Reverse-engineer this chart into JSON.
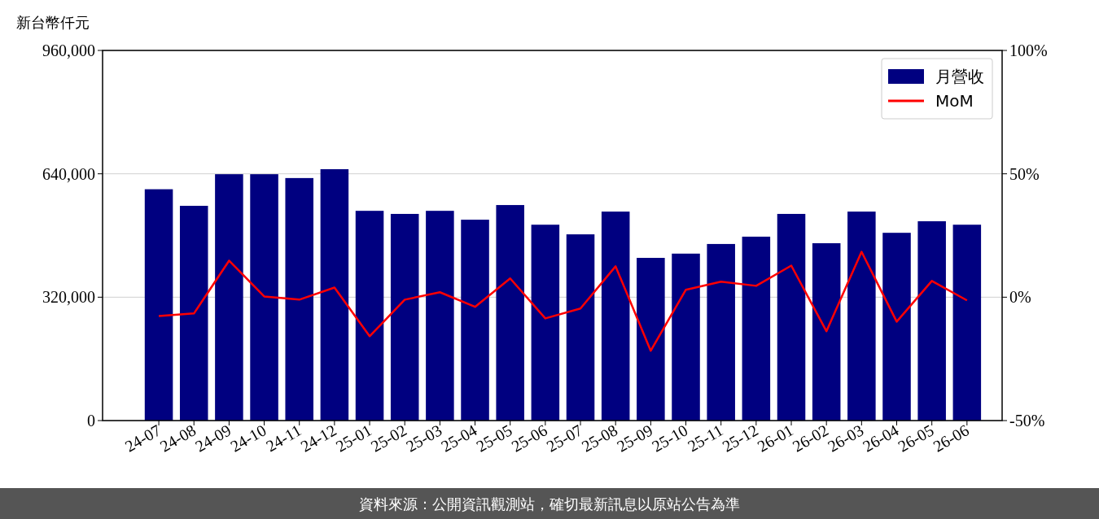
{
  "chart_data": {
    "type": "bar",
    "ylabel": "新台幣仟元",
    "categories": [
      "24-07",
      "24-08",
      "24-09",
      "24-10",
      "24-11",
      "24-12",
      "25-01",
      "25-02",
      "25-03",
      "25-04",
      "25-05",
      "25-06",
      "25-07",
      "25-08",
      "25-09",
      "25-10",
      "25-11",
      "25-12",
      "26-01",
      "26-02",
      "26-03",
      "26-04",
      "26-05",
      "26-06"
    ],
    "series": [
      {
        "name": "月營收",
        "color": "#000080",
        "values": [
          600000,
          557000,
          639000,
          639000,
          629000,
          652000,
          544000,
          536000,
          544000,
          521000,
          559000,
          508000,
          483000,
          542000,
          422000,
          433000,
          458000,
          477000,
          536000,
          460000,
          542000,
          487000,
          517000,
          508000
        ]
      },
      {
        "name": "MoM",
        "type": "line",
        "axis": "y2",
        "color": "#ff0000",
        "values": [
          -7.6,
          -6.6,
          14.8,
          0.3,
          -1,
          3.9,
          -15.8,
          -1,
          2,
          -3.9,
          7.6,
          -8.6,
          -4.6,
          12.5,
          -21.7,
          3,
          6.3,
          4.6,
          12.8,
          -13.8,
          18.4,
          -9.9,
          6.6,
          -1.3
        ]
      }
    ],
    "ylim": [
      0,
      960000
    ],
    "yticks": [
      0,
      {
        "value": 320000,
        "label": "320,000"
      },
      {
        "value": 640000,
        "label": "640,000"
      },
      {
        "value": 960000,
        "label": "960,000"
      }
    ],
    "y2lim": [
      -50,
      100
    ],
    "y2ticks": [
      {
        "value": -50,
        "label": "-50%"
      },
      {
        "value": 0,
        "label": "0%"
      },
      {
        "value": 50,
        "label": "50%"
      },
      {
        "value": 100,
        "label": "100%"
      }
    ],
    "grid": "y",
    "legend": "top right",
    "annotations": [
      "資料來源：公開資訊觀測站，確切最新訊息以原站公告為準"
    ]
  }
}
